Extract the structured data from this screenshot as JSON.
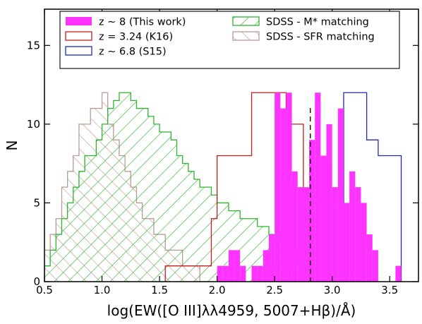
{
  "chart_data": {
    "type": "histogram",
    "xlabel": "log(EW([O III]λλ4959, 5007+Hβ)/Å)",
    "ylabel": "N",
    "xlim": [
      0.5,
      3.75
    ],
    "ylim": [
      0,
      17.3
    ],
    "xticks": [
      0.5,
      1.0,
      1.5,
      2.0,
      2.5,
      3.0,
      3.5
    ],
    "xtick_labels": [
      "0.5",
      "1.0",
      "1.5",
      "2.0",
      "2.5",
      "3.0",
      "3.5"
    ],
    "yticks": [
      0,
      5,
      10,
      15
    ],
    "ytick_labels": [
      "0",
      "5",
      "10",
      "15"
    ],
    "reference_line": {
      "x": 2.81,
      "style": "dashed",
      "color": "#000000"
    },
    "legend_position": "top",
    "series": [
      {
        "name": "SDSS - SFR matching",
        "color": "#b89b95",
        "style": "hatched-back",
        "edges": [
          0.5,
          0.55,
          0.6,
          0.65,
          0.7,
          0.75,
          0.8,
          0.85,
          0.9,
          0.95,
          1.0,
          1.05,
          1.1,
          1.15,
          1.2,
          1.25,
          1.3,
          1.35,
          1.4,
          1.45,
          1.5,
          1.55,
          1.6,
          1.65,
          1.7,
          1.75,
          1.8,
          1.85,
          1.9
        ],
        "counts": [
          2,
          3,
          4,
          6,
          7,
          8,
          10,
          10,
          11,
          11,
          12,
          10,
          9,
          8,
          7,
          6,
          5,
          4,
          4,
          3,
          3,
          2,
          2,
          2,
          1,
          1,
          1,
          0
        ]
      },
      {
        "name": "SDSS - M* matching",
        "color": "#2db52d",
        "style": "hatched-forward",
        "edges": [
          0.5,
          0.55,
          0.6,
          0.65,
          0.7,
          0.75,
          0.8,
          0.85,
          0.9,
          0.95,
          1.0,
          1.05,
          1.1,
          1.15,
          1.2,
          1.25,
          1.3,
          1.35,
          1.4,
          1.45,
          1.5,
          1.55,
          1.6,
          1.65,
          1.7,
          1.75,
          1.8,
          1.85,
          1.9,
          1.95,
          2.0,
          2.05,
          2.1,
          2.15,
          2.2,
          2.25,
          2.3,
          2.35,
          2.4,
          2.45,
          2.5,
          2.55,
          2.6,
          2.65,
          2.7,
          2.75,
          2.8
        ],
        "counts": [
          1,
          2,
          3,
          4,
          5,
          6,
          7,
          8,
          8,
          9,
          10,
          11,
          11.5,
          12,
          12,
          11.5,
          11,
          11,
          10.5,
          10,
          9.5,
          9.5,
          9,
          8,
          7.5,
          7,
          6.5,
          6,
          6,
          5.5,
          5,
          5,
          4.5,
          4.5,
          4,
          4,
          4,
          3.5,
          3.5,
          3,
          3,
          2.5,
          2,
          2,
          1,
          0
        ]
      },
      {
        "name": "z = 3.24 (K16)",
        "color": "#c41e1e",
        "style": "outline",
        "edges": [
          1.55,
          1.6,
          1.65,
          1.7,
          1.75,
          1.8,
          1.85,
          1.9,
          1.95,
          2.0,
          2.05,
          2.1,
          2.15,
          2.2,
          2.25,
          2.3,
          2.35,
          2.4,
          2.45,
          2.5,
          2.55,
          2.6,
          2.65,
          2.7,
          2.75,
          2.8
        ],
        "counts": [
          1,
          1,
          1,
          1,
          1,
          1,
          1,
          1,
          4,
          8,
          8,
          8,
          8,
          8,
          8,
          12,
          12,
          12,
          12,
          12,
          12,
          10,
          10,
          10,
          5
        ]
      },
      {
        "name": "z ∼ 6.8 (S15)",
        "color": "#1e2ab8",
        "style": "outline",
        "edges": [
          2.8,
          2.85,
          2.9,
          2.95,
          3.0,
          3.05,
          3.1,
          3.15,
          3.2,
          3.25,
          3.3,
          3.35,
          3.4,
          3.45,
          3.5,
          3.55,
          3.6
        ],
        "counts": [
          5,
          5,
          5,
          5,
          5,
          5,
          12,
          12,
          12,
          12,
          9,
          9,
          8,
          8,
          8,
          8
        ]
      },
      {
        "name": "z ∼ 8 (This work)",
        "color": "#ff33ff",
        "style": "filled",
        "edges": [
          2.0,
          2.05,
          2.1,
          2.15,
          2.2,
          2.25,
          2.3,
          2.35,
          2.4,
          2.45,
          2.5,
          2.55,
          2.6,
          2.65,
          2.7,
          2.75,
          2.8,
          2.85,
          2.9,
          2.95,
          3.0,
          3.05,
          3.1,
          3.15,
          3.2,
          3.25,
          3.3,
          3.35,
          3.4,
          3.45,
          3.5,
          3.55,
          3.6
        ],
        "counts": [
          1,
          1,
          2,
          2,
          1,
          0,
          1,
          1,
          2,
          3,
          12,
          11,
          12,
          7,
          6,
          6,
          9,
          12,
          8,
          10,
          6,
          11,
          5,
          7,
          6,
          5,
          3,
          2,
          0,
          0,
          0,
          1
        ]
      }
    ],
    "legend": [
      {
        "label": "z ∼ 8 (This work)",
        "series": 4,
        "column": 0
      },
      {
        "label": "z = 3.24 (K16)",
        "series": 2,
        "column": 0
      },
      {
        "label": "z ∼ 6.8 (S15)",
        "series": 3,
        "column": 0
      },
      {
        "label": "SDSS - M* matching",
        "series": 1,
        "column": 1
      },
      {
        "label": "SDSS - SFR matching",
        "series": 0,
        "column": 1
      }
    ]
  }
}
